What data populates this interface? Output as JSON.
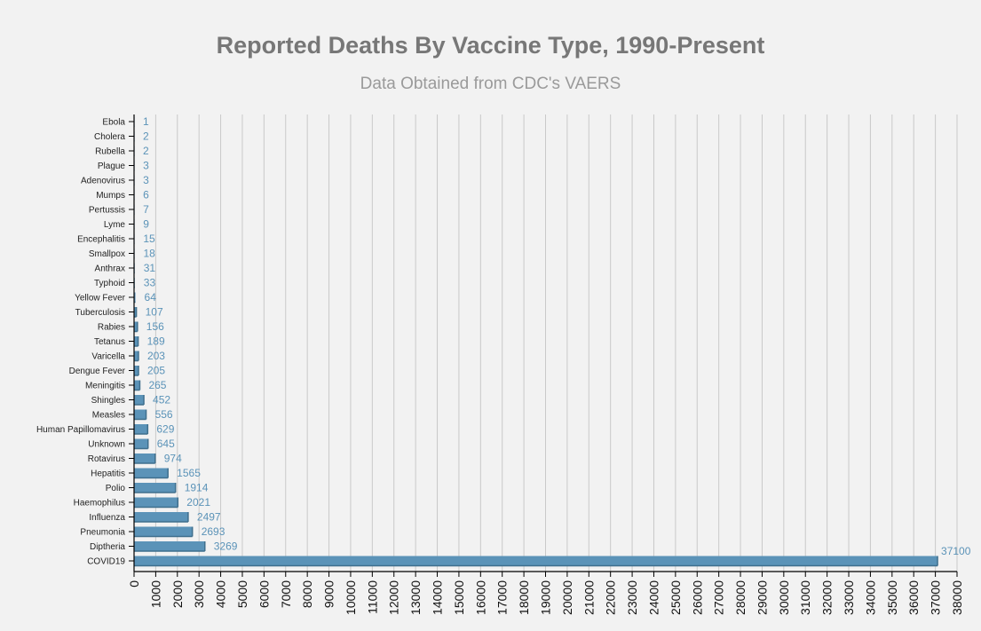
{
  "chart_data": {
    "type": "bar",
    "orientation": "horizontal",
    "title": "Reported Deaths By Vaccine Type, 1990-Present",
    "subtitle": "Data Obtained from CDC's VAERS",
    "xlim": [
      0,
      38000
    ],
    "x_tick_step": 1000,
    "grid": true,
    "bar_color": "#5b93b8",
    "bar_edge_color": "#3f6f8d",
    "label_color": "#5b93b8",
    "grid_color": "#c9c9c9",
    "axis_color": "#000000",
    "categories": [
      "Ebola",
      "Cholera",
      "Rubella",
      "Plague",
      "Adenovirus",
      "Mumps",
      "Pertussis",
      "Lyme",
      "Encephalitis",
      "Smallpox",
      "Anthrax",
      "Typhoid",
      "Yellow Fever",
      "Tuberculosis",
      "Rabies",
      "Tetanus",
      "Varicella",
      "Dengue Fever",
      "Meningitis",
      "Shingles",
      "Measles",
      "Human Papillomavirus",
      "Unknown",
      "Rotavirus",
      "Hepatitis",
      "Polio",
      "Haemophilus",
      "Influenza",
      "Pneumonia",
      "Diptheria",
      "COVID19"
    ],
    "values": [
      1,
      2,
      2,
      3,
      3,
      6,
      7,
      9,
      15,
      18,
      31,
      33,
      64,
      107,
      156,
      189,
      203,
      205,
      265,
      452,
      556,
      629,
      645,
      974,
      1565,
      1914,
      2021,
      2497,
      2693,
      3269,
      37100
    ]
  }
}
